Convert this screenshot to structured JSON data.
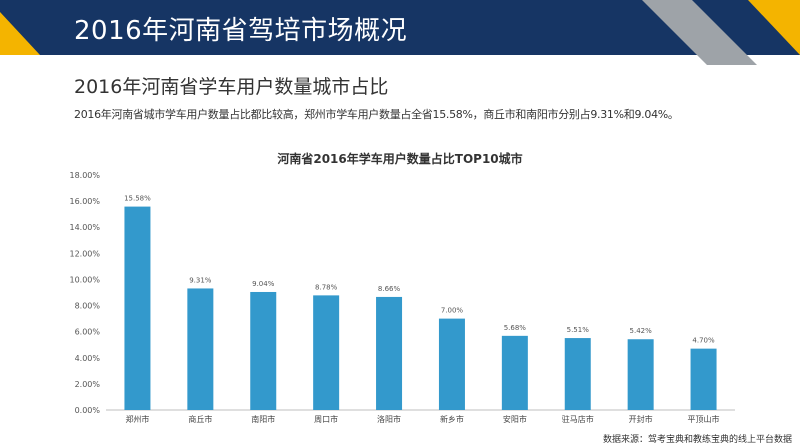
{
  "header": {
    "title": "2016年河南省驾培市场概况"
  },
  "section": {
    "title": "2016年河南省学车用户数量城市占比",
    "summary": "2016年河南省城市学车用户数量占比都比较高，郑州市学车用户数量占全省15.58%，商丘市和南阳市分别占9.31%和9.04%。"
  },
  "source": "数据来源：驾考宝典和教练宝典的线上平台数据",
  "colors": {
    "header_bg": "#163564",
    "accent_yellow": "#F4B400",
    "accent_gray": "#9EA3A8",
    "bar": "#3399CC"
  },
  "chart_data": {
    "type": "bar",
    "title": "河南省2016年学车用户数量占比TOP10城市",
    "categories": [
      "郑州市",
      "商丘市",
      "南阳市",
      "周口市",
      "洛阳市",
      "新乡市",
      "安阳市",
      "驻马店市",
      "开封市",
      "平顶山市"
    ],
    "values": [
      15.58,
      9.31,
      9.04,
      8.78,
      8.66,
      7.0,
      5.68,
      5.51,
      5.42,
      4.7
    ],
    "value_labels": [
      "15.58%",
      "9.31%",
      "9.04%",
      "8.78%",
      "8.66%",
      "7.00%",
      "5.68%",
      "5.51%",
      "5.42%",
      "4.70%"
    ],
    "y_ticks": [
      "0.00%",
      "2.00%",
      "4.00%",
      "6.00%",
      "8.00%",
      "10.00%",
      "12.00%",
      "14.00%",
      "16.00%",
      "18.00%"
    ],
    "ylim": [
      0,
      18
    ],
    "grid": false,
    "legend": "none"
  }
}
